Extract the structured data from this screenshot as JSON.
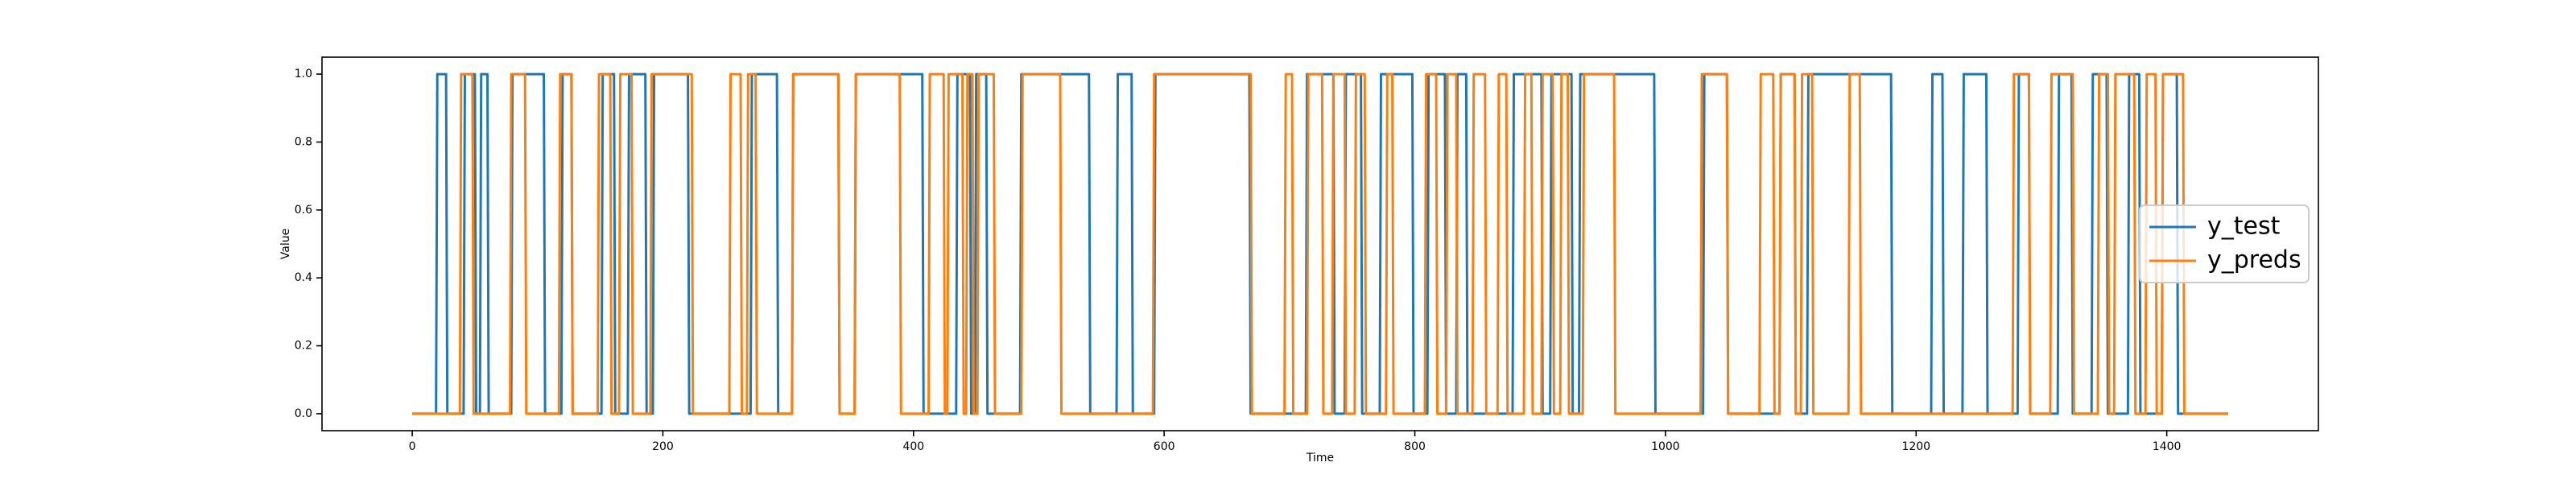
{
  "chart_data": {
    "type": "line",
    "xlabel": "Time",
    "ylabel": "Value",
    "xlim": [
      -72,
      1521
    ],
    "ylim": [
      -0.05,
      1.05
    ],
    "xticks": [
      0,
      200,
      400,
      600,
      800,
      1000,
      1200,
      1400
    ],
    "yticks": [
      {
        "value": 0,
        "label": "0.0"
      },
      {
        "value": 0.2,
        "label": "0.2"
      },
      {
        "value": 0.4,
        "label": "0.4"
      },
      {
        "value": 0.6,
        "label": "0.6"
      },
      {
        "value": 0.8,
        "label": "0.8"
      },
      {
        "value": 1,
        "label": "1.0"
      }
    ],
    "legend": "center right",
    "series": [
      {
        "name": "y_test",
        "color": "#1f77b4",
        "x": [
          0,
          19,
          20,
          27,
          28,
          41,
          42,
          50,
          51,
          54,
          55,
          60,
          61,
          79,
          80,
          105,
          106,
          119,
          120,
          127,
          128,
          151,
          152,
          161,
          162,
          172,
          173,
          186,
          187,
          192,
          193,
          220,
          221,
          270,
          271,
          291,
          292,
          303,
          304,
          340,
          341,
          353,
          354,
          407,
          408,
          434,
          435,
          445,
          446,
          449,
          450,
          458,
          459,
          485,
          486,
          540,
          541,
          562,
          563,
          574,
          575,
          592,
          593,
          668,
          669,
          713,
          714,
          735,
          736,
          744,
          745,
          757,
          758,
          772,
          773,
          798,
          799,
          810,
          811,
          824,
          825,
          833,
          834,
          841,
          842,
          878,
          879,
          901,
          902,
          908,
          909,
          925,
          926,
          931,
          932,
          991,
          992,
          1030,
          1031,
          1049,
          1050,
          1091,
          1092,
          1103,
          1104,
          1113,
          1114,
          1180,
          1181,
          1212,
          1213,
          1221,
          1222,
          1237,
          1238,
          1256,
          1257,
          1281,
          1282,
          1290,
          1291,
          1313,
          1314,
          1324,
          1325,
          1340,
          1341,
          1352,
          1353,
          1369,
          1370,
          1378,
          1379,
          1396,
          1397,
          1408,
          1409,
          1449
        ],
        "values": [
          0,
          0,
          1,
          1,
          0,
          0,
          1,
          1,
          0,
          0,
          1,
          1,
          0,
          0,
          1,
          1,
          0,
          0,
          1,
          1,
          0,
          0,
          1,
          1,
          0,
          0,
          1,
          1,
          0,
          0,
          1,
          1,
          0,
          0,
          1,
          1,
          0,
          0,
          1,
          1,
          0,
          0,
          1,
          1,
          0,
          0,
          1,
          1,
          0,
          0,
          1,
          1,
          0,
          0,
          1,
          1,
          0,
          0,
          1,
          1,
          0,
          0,
          1,
          1,
          0,
          0,
          1,
          1,
          0,
          0,
          1,
          1,
          0,
          0,
          1,
          1,
          0,
          0,
          1,
          1,
          0,
          0,
          1,
          1,
          0,
          0,
          1,
          1,
          0,
          0,
          1,
          1,
          0,
          0,
          1,
          1,
          0,
          0,
          1,
          1,
          0,
          0,
          1,
          1,
          0,
          0,
          1,
          1,
          0,
          0,
          1,
          1,
          0,
          0,
          1,
          1,
          0,
          0,
          1,
          1,
          0,
          0,
          1,
          1,
          0,
          0,
          1,
          1,
          0,
          0,
          1,
          1,
          0,
          0,
          1,
          1,
          0,
          0
        ]
      },
      {
        "name": "y_preds",
        "color": "#ff7f0e",
        "x": [
          0,
          38,
          39,
          48,
          49,
          78,
          79,
          90,
          91,
          117,
          118,
          127,
          128,
          148,
          149,
          158,
          159,
          165,
          166,
          175,
          176,
          190,
          191,
          223,
          224,
          253,
          254,
          262,
          263,
          267,
          268,
          274,
          275,
          303,
          304,
          340,
          341,
          353,
          354,
          389,
          390,
          412,
          413,
          424,
          425,
          427,
          428,
          439,
          440,
          442,
          443,
          447,
          448,
          451,
          452,
          464,
          465,
          486,
          487,
          517,
          518,
          591,
          592,
          669,
          670,
          696,
          697,
          702,
          703,
          714,
          715,
          726,
          727,
          734,
          735,
          744,
          745,
          752,
          753,
          760,
          761,
          777,
          778,
          782,
          783,
          808,
          809,
          817,
          818,
          825,
          826,
          833,
          834,
          846,
          847,
          856,
          857,
          866,
          867,
          873,
          874,
          887,
          888,
          893,
          894,
          901,
          902,
          910,
          911,
          916,
          917,
          922,
          923,
          934,
          935,
          959,
          960,
          1028,
          1029,
          1049,
          1050,
          1075,
          1076,
          1086,
          1087,
          1091,
          1092,
          1103,
          1104,
          1108,
          1109,
          1117,
          1118,
          1146,
          1147,
          1155,
          1156,
          1277,
          1278,
          1290,
          1291,
          1307,
          1308,
          1325,
          1326,
          1345,
          1346,
          1353,
          1354,
          1358,
          1359,
          1374,
          1375,
          1383,
          1384,
          1391,
          1392,
          1396,
          1397,
          1413,
          1414,
          1449
        ],
        "values": [
          0,
          0,
          1,
          1,
          0,
          0,
          1,
          1,
          0,
          0,
          1,
          1,
          0,
          0,
          1,
          1,
          0,
          0,
          1,
          1,
          0,
          0,
          1,
          1,
          0,
          0,
          1,
          1,
          0,
          0,
          1,
          1,
          0,
          0,
          1,
          1,
          0,
          0,
          1,
          1,
          0,
          0,
          1,
          1,
          0,
          0,
          1,
          1,
          0,
          0,
          1,
          1,
          0,
          0,
          1,
          1,
          0,
          0,
          1,
          1,
          0,
          0,
          1,
          1,
          0,
          0,
          1,
          1,
          0,
          0,
          1,
          1,
          0,
          0,
          1,
          1,
          0,
          0,
          1,
          1,
          0,
          0,
          1,
          1,
          0,
          0,
          1,
          1,
          0,
          0,
          1,
          1,
          0,
          0,
          1,
          1,
          0,
          0,
          1,
          1,
          0,
          0,
          1,
          1,
          0,
          0,
          1,
          1,
          0,
          0,
          1,
          1,
          0,
          0,
          1,
          1,
          0,
          0,
          1,
          1,
          0,
          0,
          1,
          1,
          0,
          0,
          1,
          1,
          0,
          0,
          1,
          1,
          0,
          0,
          1,
          1,
          0,
          0,
          1,
          1,
          0,
          0,
          1,
          1,
          0,
          0,
          1,
          1,
          0,
          0,
          1,
          1,
          0,
          0,
          1,
          1,
          0,
          0,
          1,
          1,
          0,
          0
        ]
      }
    ]
  }
}
